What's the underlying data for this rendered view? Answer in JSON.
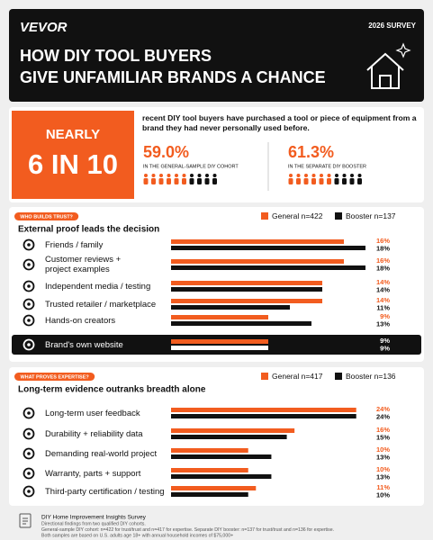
{
  "header": {
    "brand": "VEVOR",
    "badge": "2026 SURVEY",
    "title_lines": [
      "HOW DIY TOOL BUYERS",
      "GIVE UNFAMILIAR BRANDS A CHANCE"
    ]
  },
  "headline": {
    "prefix": "NEARLY",
    "main": "6 IN 10",
    "text": "recent DIY tool buyers have purchased a tool or piece of equipment from a brand they had never personally used before."
  },
  "stats": [
    {
      "value": "59.0%",
      "label": "IN THE GENERAL-SAMPLE DIY COHORT"
    },
    {
      "value": "61.3%",
      "label": "IN THE SEPARATE DIY BOOSTER"
    }
  ],
  "chart_data": [
    {
      "type": "bar",
      "tag": "WHO BUILDS TRUST?",
      "title": "External proof leads the decision",
      "xlim": [
        0,
        20
      ],
      "highlight": 5,
      "categories": [
        "Friends / family",
        "Customer reviews +\nproject examples",
        "Independent media / testing",
        "Trusted retailer / marketplace",
        "Hands-on creators",
        "Brand's own website"
      ],
      "series": [
        {
          "name": "General n=422",
          "color": "#f25c1f",
          "values": [
            16,
            16,
            14,
            14,
            9,
            9
          ],
          "value_labels": [
            "16%",
            "16%",
            "14%",
            "14%",
            "9%",
            "9%"
          ]
        },
        {
          "name": "Booster n=137",
          "color": "#111111",
          "values": [
            18,
            18,
            14,
            11,
            13,
            9
          ],
          "value_labels": [
            "18%",
            "18%",
            "14%",
            "11%",
            "13%",
            "9%"
          ]
        }
      ]
    },
    {
      "type": "bar",
      "tag": "WHAT PROVES EXPERTISE?",
      "title": "Long-term evidence outranks breadth alone",
      "xlim": [
        0,
        28
      ],
      "categories": [
        "Long-term user feedback",
        "Durability + reliability data",
        "Demanding real-world project",
        "Warranty, parts + support",
        "Third-party certification / testing"
      ],
      "series": [
        {
          "name": "General n=417",
          "color": "#f25c1f",
          "values": [
            24,
            16,
            10,
            10,
            11
          ],
          "value_labels": [
            "24%",
            "16%",
            "10%",
            "10%",
            "11%"
          ]
        },
        {
          "name": "Booster n=136",
          "color": "#111111",
          "values": [
            24,
            15,
            13,
            13,
            10
          ],
          "value_labels": [
            "24%",
            "15%",
            "13%",
            "13%",
            "10%"
          ]
        }
      ]
    }
  ],
  "footer": {
    "title": "DIY Home Improvement Insights Survey",
    "lines": [
      "Directional findings from two qualified DIY cohorts.",
      "General-sample DIY cohort: n=422 for trust/trust and n=417 for expertise. Separate DIY booster: n=137 for trust/trust and n=136 for expertise.",
      "Both samples are based on U.S. adults age 18+ with annual household incomes of $75,000+"
    ]
  }
}
